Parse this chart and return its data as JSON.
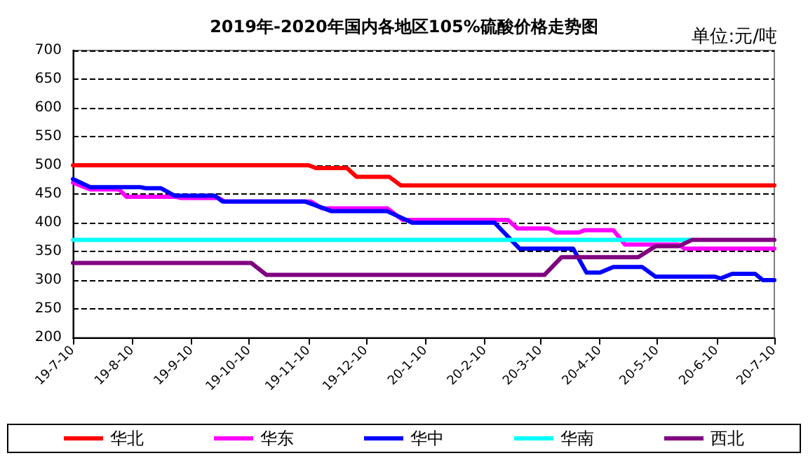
{
  "chart_data": {
    "type": "line",
    "title": "2019年-2020年国内各地区105%硫酸价格走势图",
    "annotations": [
      "单位:元/吨"
    ],
    "xlim": [
      "2019-07-10",
      "2020-07-10"
    ],
    "xticks": [
      {
        "value": "2019-07-10",
        "label": "19-7-10"
      },
      {
        "value": "2019-08-10",
        "label": "19-8-10"
      },
      {
        "value": "2019-09-10",
        "label": "19-9-10"
      },
      {
        "value": "2019-10-10",
        "label": "19-10-10"
      },
      {
        "value": "2019-11-10",
        "label": "19-11-10"
      },
      {
        "value": "2019-12-10",
        "label": "19-12-10"
      },
      {
        "value": "2020-01-10",
        "label": "20-1-10"
      },
      {
        "value": "2020-02-10",
        "label": "20-2-10"
      },
      {
        "value": "2020-03-10",
        "label": "20-3-10"
      },
      {
        "value": "2020-04-10",
        "label": "20-4-10"
      },
      {
        "value": "2020-05-10",
        "label": "20-5-10"
      },
      {
        "value": "2020-06-10",
        "label": "20-6-10"
      },
      {
        "value": "2020-07-10",
        "label": "20-7-10"
      }
    ],
    "ylim": [
      200,
      700
    ],
    "yticks": [
      200,
      250,
      300,
      350,
      400,
      450,
      500,
      550,
      600,
      650,
      700
    ],
    "grid": "y",
    "legend": "bottom",
    "line_style": "solid",
    "series": [
      {
        "name": "华北",
        "color": "#ff0000",
        "x": [
          "2019-07-10",
          "2019-11-10",
          "2019-11-14",
          "2019-11-30",
          "2019-12-05",
          "2019-12-22",
          "2019-12-28",
          "2020-07-10"
        ],
        "values": [
          500,
          500,
          495,
          495,
          480,
          480,
          465,
          465
        ]
      },
      {
        "name": "华东",
        "color": "#ff00ff",
        "x": [
          "2019-07-10",
          "2019-07-19",
          "2019-08-03",
          "2019-08-07",
          "2019-09-02",
          "2019-09-04",
          "2019-09-24",
          "2019-09-27",
          "2019-11-11",
          "2019-11-17",
          "2019-12-21",
          "2019-12-29",
          "2020-02-22",
          "2020-02-27",
          "2020-03-14",
          "2020-03-18",
          "2020-03-30",
          "2020-04-02",
          "2020-04-17",
          "2020-04-23",
          "2020-05-21",
          "2020-05-24",
          "2020-07-10"
        ],
        "values": [
          470,
          458,
          458,
          445,
          445,
          443,
          443,
          437,
          437,
          425,
          425,
          405,
          405,
          390,
          390,
          383,
          383,
          387,
          387,
          362,
          362,
          355,
          355
        ]
      },
      {
        "name": "华中",
        "color": "#0000ff",
        "x": [
          "2019-07-10",
          "2019-07-19",
          "2019-08-14",
          "2019-08-17",
          "2019-08-25",
          "2019-09-01",
          "2019-09-22",
          "2019-09-26",
          "2019-11-08",
          "2019-11-22",
          "2019-12-21",
          "2020-01-03",
          "2020-02-15",
          "2020-02-28",
          "2020-03-27",
          "2020-04-03",
          "2020-04-10",
          "2020-04-17",
          "2020-05-02",
          "2020-05-09",
          "2020-06-09",
          "2020-06-12",
          "2020-06-18",
          "2020-06-30",
          "2020-07-04",
          "2020-07-10"
        ],
        "values": [
          476,
          462,
          462,
          460,
          460,
          447,
          447,
          437,
          437,
          420,
          420,
          400,
          400,
          355,
          355,
          313,
          313,
          323,
          323,
          306,
          306,
          303,
          311,
          311,
          300,
          300
        ]
      },
      {
        "name": "华南",
        "color": "#00ffff",
        "x": [
          "2019-07-10",
          "2020-05-28"
        ],
        "values": [
          370,
          370
        ]
      },
      {
        "name": "西北",
        "color": "#800080",
        "x": [
          "2019-07-10",
          "2019-10-11",
          "2019-10-19",
          "2020-03-12",
          "2020-03-21",
          "2020-04-30",
          "2020-05-09",
          "2020-05-21",
          "2020-05-28",
          "2020-07-10"
        ],
        "values": [
          330,
          330,
          309,
          309,
          340,
          340,
          359,
          359,
          370,
          370
        ]
      }
    ]
  }
}
